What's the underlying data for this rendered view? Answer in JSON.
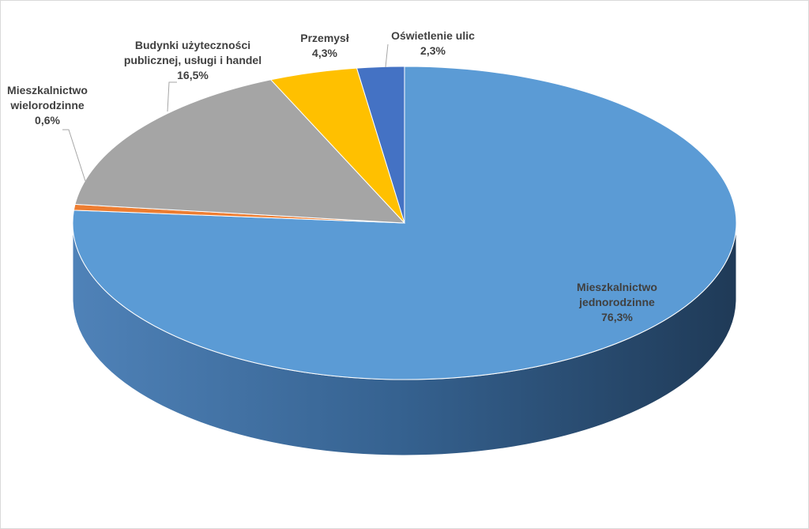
{
  "chart_data": {
    "type": "pie",
    "title": "",
    "three_d": true,
    "slices": [
      {
        "label_lines": [
          "Mieszkalnictwo",
          "jednorodzinne"
        ],
        "value_label": "76,3%",
        "value": 76.3,
        "color": "#5b9bd5",
        "side_color": "#2e5f8c"
      },
      {
        "label_lines": [
          "Mieszkalnictwo",
          "wielorodzinne"
        ],
        "value_label": "0,6%",
        "value": 0.6,
        "color": "#ed7d31",
        "side_color": "#b85a1b"
      },
      {
        "label_lines": [
          "Budynki użyteczności",
          "publicznej, usługi i handel"
        ],
        "value_label": "16,5%",
        "value": 16.5,
        "color": "#a5a5a5",
        "side_color": "#7a7a7a"
      },
      {
        "label_lines": [
          "Przemysł"
        ],
        "value_label": "4,3%",
        "value": 4.3,
        "color": "#ffc000",
        "side_color": "#c49300"
      },
      {
        "label_lines": [
          "Oświetlenie ulic"
        ],
        "value_label": "2,3%",
        "value": 2.3,
        "color": "#4472c4",
        "side_color": "#2f528f"
      }
    ]
  }
}
